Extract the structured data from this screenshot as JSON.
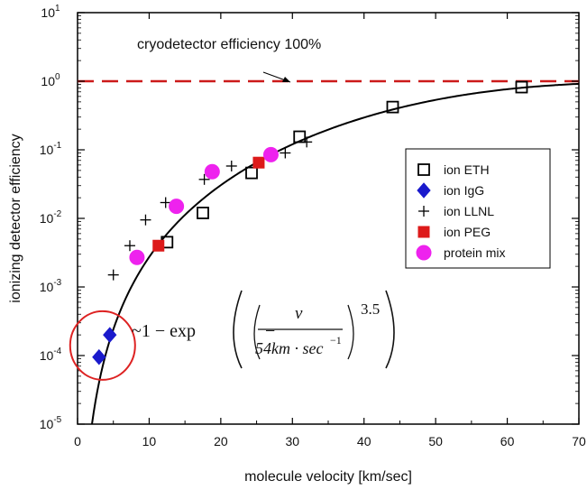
{
  "chart_data": {
    "type": "scatter",
    "title": "",
    "xlabel": "molecule velocity [km/sec]",
    "ylabel": "ionizing detector efficiency",
    "xlim": [
      0,
      70
    ],
    "ylim": [
      1e-05,
      10
    ],
    "yscale": "log",
    "grid": false,
    "legend_position": "right",
    "x_ticks": [
      0,
      10,
      20,
      30,
      40,
      50,
      60,
      70
    ],
    "x_tick_labels": [
      "0",
      "10",
      "20",
      "30",
      "40",
      "50",
      "60",
      "70"
    ],
    "y_ticks": [
      1e-05,
      0.0001,
      0.001,
      0.01,
      0.1,
      1,
      10
    ],
    "y_tick_labels": [
      {
        "base": "10",
        "exp": "-5"
      },
      {
        "base": "10",
        "exp": "-4"
      },
      {
        "base": "10",
        "exp": "-3"
      },
      {
        "base": "10",
        "exp": "-2"
      },
      {
        "base": "10",
        "exp": "-1"
      },
      {
        "base": "10",
        "exp": "0"
      },
      {
        "base": "10",
        "exp": "1"
      }
    ],
    "reference_line": {
      "y": 1,
      "label": "cryodetector efficiency 100%",
      "color": "#cc1a1a"
    },
    "fit_curve": {
      "formula": "1 - exp(-(v/54)^3.5)",
      "scale_kms": 54,
      "exponent": 3.5,
      "color": "#000000"
    },
    "formula_text": {
      "lead": "~1 − exp",
      "numerator": "v",
      "denominator": "54km · sec",
      "denominator_exp": "−1",
      "exponent": "3.5"
    },
    "highlight_circle": {
      "x": 3.5,
      "y": 0.00014,
      "color": "#dd2222"
    },
    "series": [
      {
        "name": "ion ETH",
        "marker": "open-square",
        "color": "#000000",
        "points": [
          [
            12.5,
            0.0045
          ],
          [
            17.5,
            0.012
          ],
          [
            24.3,
            0.046
          ],
          [
            31.0,
            0.155
          ],
          [
            44.0,
            0.42
          ],
          [
            62.0,
            0.82
          ]
        ]
      },
      {
        "name": "ion IgG",
        "marker": "diamond",
        "color": "#1a1acc",
        "points": [
          [
            3.0,
            9.5e-05
          ],
          [
            4.5,
            0.0002
          ]
        ]
      },
      {
        "name": "ion LLNL",
        "marker": "plus",
        "color": "#000000",
        "points": [
          [
            5.0,
            0.0015
          ],
          [
            7.3,
            0.004
          ],
          [
            9.5,
            0.0095
          ],
          [
            12.3,
            0.017
          ],
          [
            17.7,
            0.037
          ],
          [
            21.5,
            0.058
          ],
          [
            29.0,
            0.09
          ],
          [
            32.0,
            0.13
          ]
        ]
      },
      {
        "name": "ion PEG",
        "marker": "filled-square",
        "color": "#dd1a1a",
        "points": [
          [
            11.3,
            0.004
          ],
          [
            25.3,
            0.065
          ]
        ]
      },
      {
        "name": "protein mix",
        "marker": "circle",
        "color": "#ee22ee",
        "points": [
          [
            8.3,
            0.0027
          ],
          [
            13.8,
            0.015
          ],
          [
            18.8,
            0.048
          ],
          [
            27.0,
            0.085
          ]
        ]
      }
    ]
  }
}
